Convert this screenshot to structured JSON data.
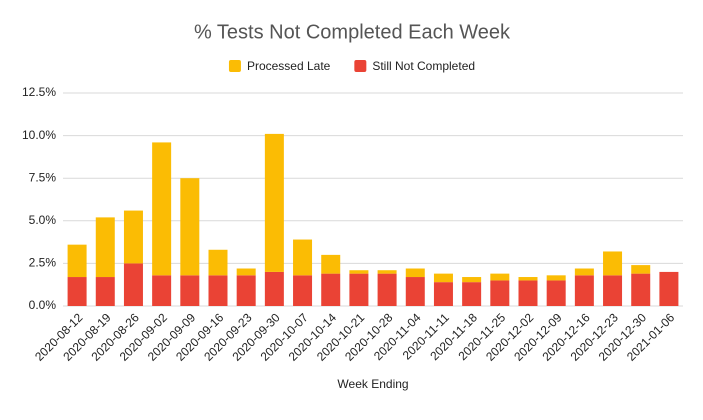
{
  "chart_data": {
    "type": "stacked_bar",
    "title": "% Tests Not Completed Each Week",
    "x_label": "Week Ending",
    "categories": [
      "2020-08-12",
      "2020-08-19",
      "2020-08-26",
      "2020-09-02",
      "2020-09-09",
      "2020-09-16",
      "2020-09-23",
      "2020-09-30",
      "2020-10-07",
      "2020-10-14",
      "2020-10-21",
      "2020-10-28",
      "2020-11-04",
      "2020-11-11",
      "2020-11-18",
      "2020-11-25",
      "2020-12-02",
      "2020-12-09",
      "2020-12-16",
      "2020-12-23",
      "2020-12-30",
      "2021-01-06"
    ],
    "series": [
      {
        "name": "Processed Late",
        "color": "#fbbc04",
        "values": [
          1.9,
          3.5,
          3.1,
          7.8,
          5.7,
          1.5,
          0.4,
          8.1,
          2.1,
          1.1,
          0.2,
          0.2,
          0.5,
          0.5,
          0.3,
          0.4,
          0.2,
          0.3,
          0.4,
          1.4,
          0.5,
          0
        ]
      },
      {
        "name": "Still Not Completed",
        "color": "#ea4335",
        "values": [
          1.7,
          1.7,
          2.5,
          1.8,
          1.8,
          1.8,
          1.8,
          2.0,
          1.8,
          1.9,
          1.9,
          1.9,
          1.7,
          1.4,
          1.4,
          1.5,
          1.5,
          1.5,
          1.8,
          1.8,
          1.9,
          2.0
        ]
      }
    ],
    "ylim": [
      0,
      12.5
    ],
    "yticks": [
      {
        "value": 0,
        "label": "0.0%"
      },
      {
        "value": 2.5,
        "label": "2.5%"
      },
      {
        "value": 5,
        "label": "5.0%"
      },
      {
        "value": 7.5,
        "label": "7.5%"
      },
      {
        "value": 10,
        "label": "10.0%"
      },
      {
        "value": 12.5,
        "label": "12.5%"
      }
    ],
    "grid": true,
    "legend": "top"
  }
}
